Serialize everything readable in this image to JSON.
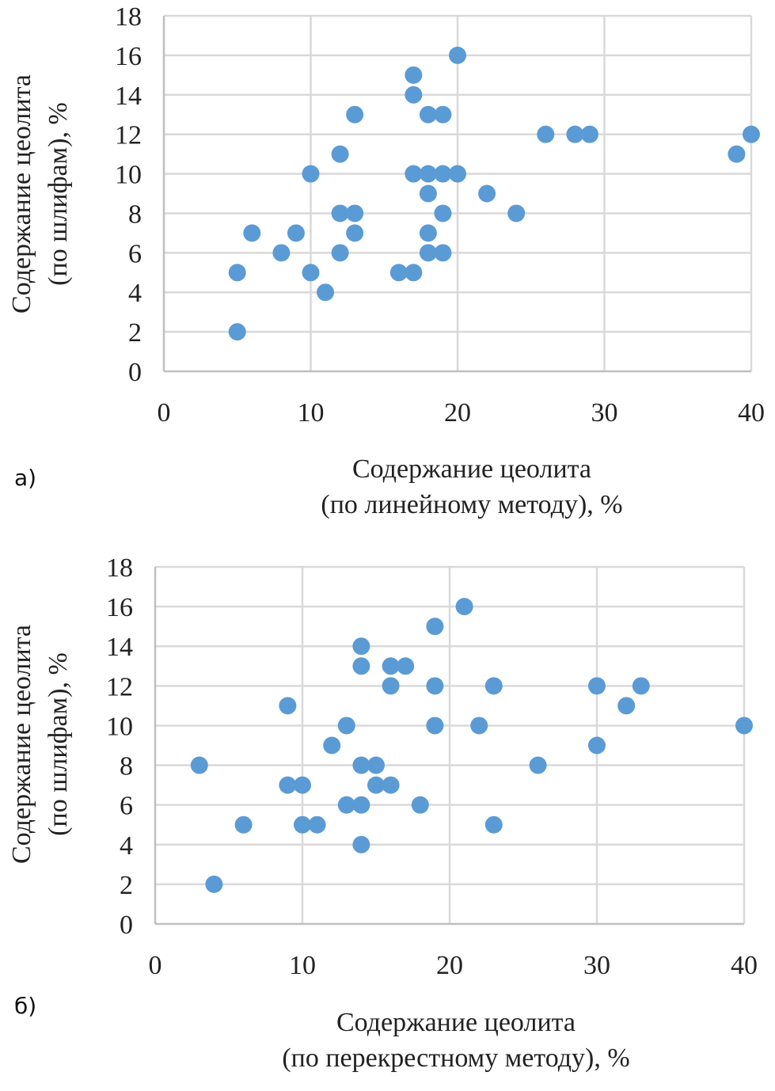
{
  "chart_data": [
    {
      "type": "scatter",
      "panel_label": "а)",
      "title": "",
      "xlabel": [
        "Содержание цеолита",
        "(по линейному  методу), %"
      ],
      "ylabel": [
        "Содержание цеолита",
        "(по шлифам), %"
      ],
      "xlim": [
        0,
        40
      ],
      "ylim": [
        0,
        18
      ],
      "xticks": [
        "0",
        "10",
        "20",
        "30",
        "40"
      ],
      "yticks": [
        "0",
        "2",
        "4",
        "6",
        "8",
        "10",
        "12",
        "14",
        "16",
        "18"
      ],
      "grid": true,
      "color": "#5b9bd5",
      "points": [
        [
          20,
          16
        ],
        [
          17,
          15
        ],
        [
          17,
          14
        ],
        [
          13,
          13
        ],
        [
          18,
          13
        ],
        [
          19,
          13
        ],
        [
          26,
          12
        ],
        [
          28,
          12
        ],
        [
          29,
          12
        ],
        [
          40,
          12
        ],
        [
          12,
          11
        ],
        [
          39,
          11
        ],
        [
          10,
          10
        ],
        [
          17,
          10
        ],
        [
          18,
          10
        ],
        [
          19,
          10
        ],
        [
          20,
          10
        ],
        [
          18,
          9
        ],
        [
          22,
          9
        ],
        [
          12,
          8
        ],
        [
          13,
          8
        ],
        [
          19,
          8
        ],
        [
          24,
          8
        ],
        [
          6,
          7
        ],
        [
          9,
          7
        ],
        [
          13,
          7
        ],
        [
          18,
          7
        ],
        [
          8,
          6
        ],
        [
          12,
          6
        ],
        [
          18,
          6
        ],
        [
          19,
          6
        ],
        [
          5,
          5
        ],
        [
          10,
          5
        ],
        [
          16,
          5
        ],
        [
          17,
          5
        ],
        [
          11,
          4
        ],
        [
          5,
          2
        ]
      ]
    },
    {
      "type": "scatter",
      "panel_label": "б)",
      "title": "",
      "xlabel": [
        "Содержание цеолита",
        "(по перекрестному методу), %"
      ],
      "ylabel": [
        "Содержание цеолита",
        "(по шлифам), %"
      ],
      "xlim": [
        0,
        40
      ],
      "ylim": [
        0,
        18
      ],
      "xticks": [
        "0",
        "10",
        "20",
        "30",
        "40"
      ],
      "yticks": [
        "0",
        "2",
        "4",
        "6",
        "8",
        "10",
        "12",
        "14",
        "16",
        "18"
      ],
      "grid": true,
      "color": "#5b9bd5",
      "points": [
        [
          21,
          16
        ],
        [
          19,
          15
        ],
        [
          14,
          14
        ],
        [
          14,
          13
        ],
        [
          16,
          13
        ],
        [
          17,
          13
        ],
        [
          16,
          12
        ],
        [
          19,
          12
        ],
        [
          23,
          12
        ],
        [
          30,
          12
        ],
        [
          33,
          12
        ],
        [
          9,
          11
        ],
        [
          32,
          11
        ],
        [
          13,
          10
        ],
        [
          19,
          10
        ],
        [
          22,
          10
        ],
        [
          40,
          10
        ],
        [
          12,
          9
        ],
        [
          30,
          9
        ],
        [
          3,
          8
        ],
        [
          14,
          8
        ],
        [
          15,
          8
        ],
        [
          26,
          8
        ],
        [
          9,
          7
        ],
        [
          10,
          7
        ],
        [
          15,
          7
        ],
        [
          16,
          7
        ],
        [
          13,
          6
        ],
        [
          14,
          6
        ],
        [
          18,
          6
        ],
        [
          6,
          5
        ],
        [
          10,
          5
        ],
        [
          11,
          5
        ],
        [
          23,
          5
        ],
        [
          14,
          4
        ],
        [
          4,
          2
        ]
      ]
    }
  ]
}
